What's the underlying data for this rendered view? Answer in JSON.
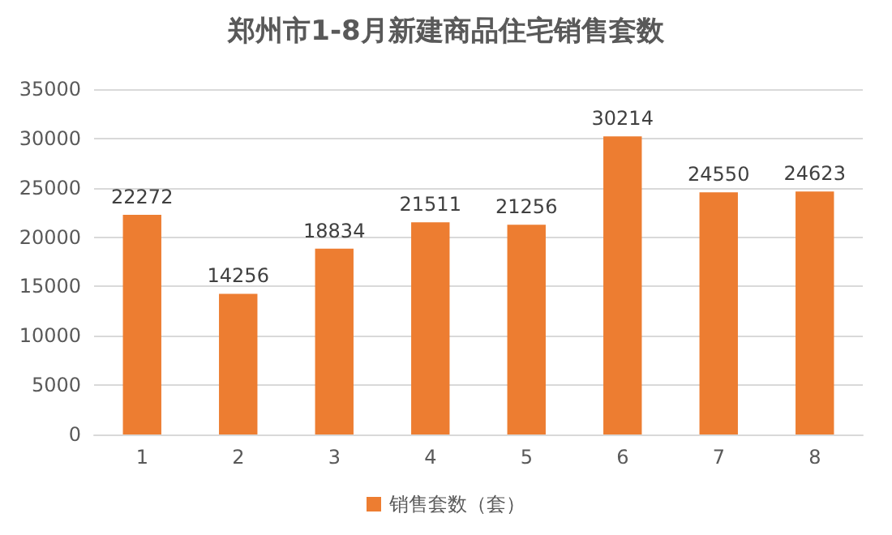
{
  "chart_data": {
    "type": "bar",
    "title": "郑州市1-8月新建商品住宅销售套数",
    "categories": [
      "1",
      "2",
      "3",
      "4",
      "5",
      "6",
      "7",
      "8"
    ],
    "series": [
      {
        "name": "销售套数（套）",
        "color": "#ed7d31",
        "values": [
          22272,
          14256,
          18834,
          21511,
          21256,
          30214,
          24550,
          24623
        ]
      }
    ],
    "ylim": [
      0,
      35000
    ],
    "yticks": [
      0,
      5000,
      10000,
      15000,
      20000,
      25000,
      30000,
      35000
    ],
    "grid": "y",
    "legend": "bottom",
    "data_labels": true
  }
}
